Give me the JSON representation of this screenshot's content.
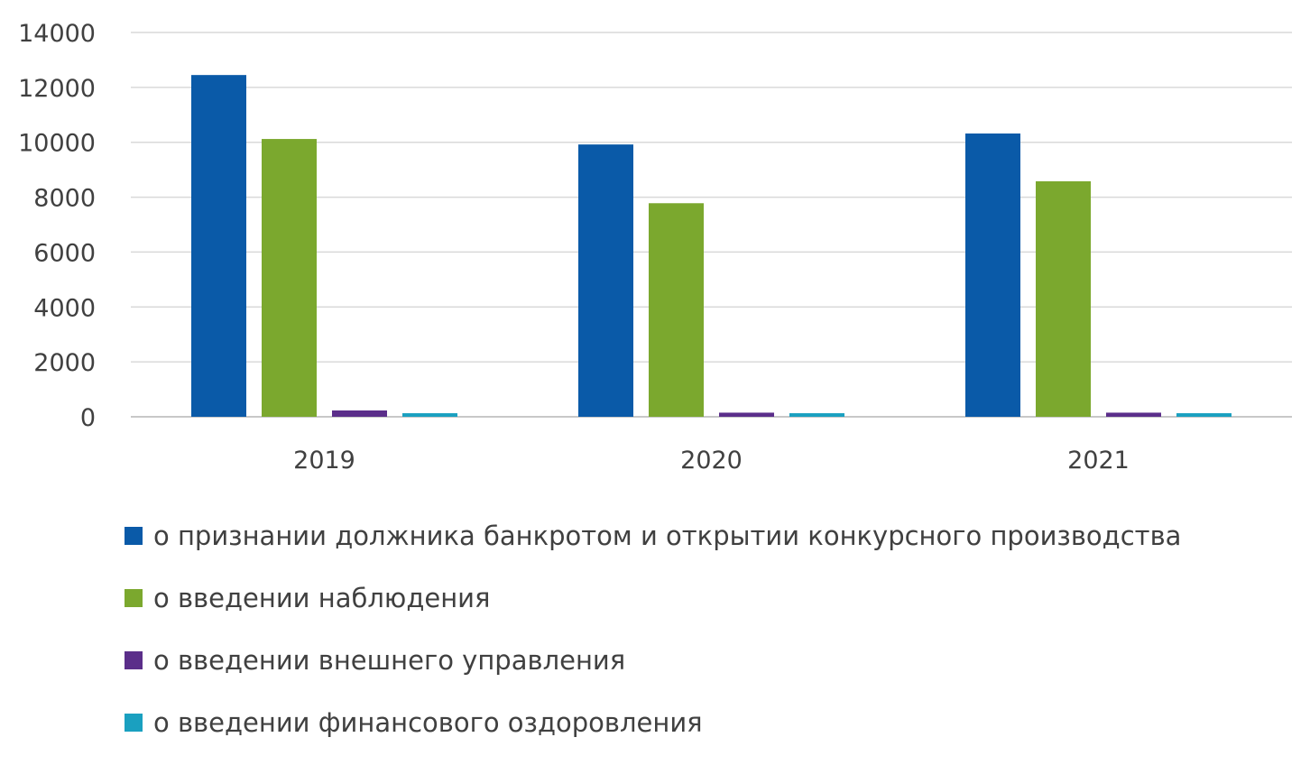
{
  "chart_data": {
    "type": "bar",
    "categories": [
      "2019",
      "2020",
      "2021"
    ],
    "series": [
      {
        "name": "о признании должника банкротом и открытии конкурсного производства",
        "color": "#0a5aa8",
        "values": [
          12450,
          9920,
          10320
        ]
      },
      {
        "name": "о введении наблюдения",
        "color": "#7ba82e",
        "values": [
          10120,
          7780,
          8580
        ]
      },
      {
        "name": "о введении внешнего управления",
        "color": "#5b2e8a",
        "values": [
          230,
          150,
          150
        ]
      },
      {
        "name": "о введении финансового оздоровления",
        "color": "#1aa0c0",
        "values": [
          130,
          130,
          130
        ]
      }
    ],
    "yticks": [
      "0",
      "2000",
      "4000",
      "6000",
      "8000",
      "10000",
      "12000",
      "14000"
    ],
    "ylim": [
      0,
      14000
    ],
    "grid": true,
    "legend_position": "bottom",
    "title": "",
    "xlabel": "",
    "ylabel": ""
  }
}
